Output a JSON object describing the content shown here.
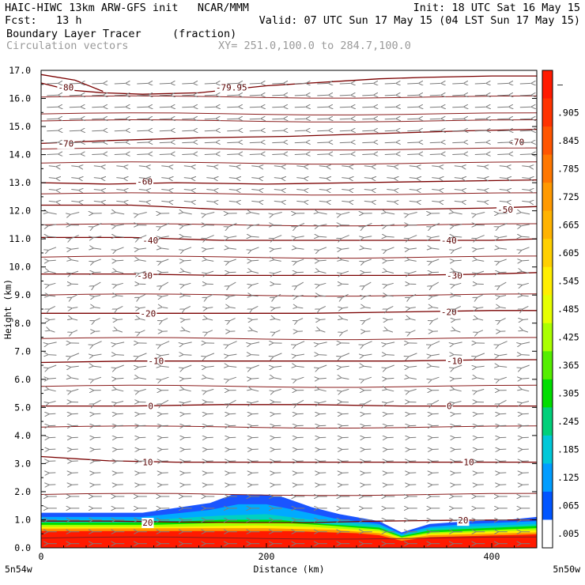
{
  "header": {
    "line1_left": "HAIC-HIWC 13km ARW-GFS init   NCAR/MMM",
    "line1_right": "Init: 18 UTC Sat 16 May 15",
    "line2_left": "Fcst:   13 h",
    "line2_right": "Valid: 07 UTC Sun 17 May 15 (04 LST Sun 17 May 15)",
    "field_name": "Boundary Layer Tracer",
    "field_unit": "(fraction)",
    "vector_label": "Circulation vectors",
    "section_label": "XY= 251.0,100.0 to 284.7,100.0"
  },
  "chart_data": {
    "type": "heatmap",
    "title": "Boundary Layer Tracer",
    "xlabel": "Distance (km)",
    "ylabel": "Height (km)",
    "xlim": [
      0,
      440
    ],
    "ylim": [
      0,
      17
    ],
    "x_ticks": [
      0,
      200,
      400
    ],
    "x_tick_labels": [
      "0",
      "200",
      "400"
    ],
    "y_ticks": [
      0,
      1,
      2,
      3,
      4,
      5,
      6,
      7,
      8,
      9,
      10,
      11,
      12,
      13,
      14,
      15,
      16,
      17
    ],
    "y_tick_labels": [
      "0.0",
      "1.0",
      "2.0",
      "3.0",
      "4.0",
      "5.0",
      "6.0",
      "7.0",
      "8.0",
      "9.0",
      "10.0",
      "11.0",
      "12.0",
      "13.0",
      "14.0",
      "15.0",
      "16.0",
      "17.0"
    ],
    "x_end_labels": [
      "5n54w",
      "5n50w"
    ],
    "colorbar": {
      "labels": [
        "–",
        ".905",
        ".845",
        ".785",
        ".725",
        ".665",
        ".605",
        ".545",
        ".485",
        ".425",
        ".365",
        ".305",
        ".245",
        ".185",
        ".125",
        ".065",
        ".005"
      ],
      "colors": [
        "#ff1a00",
        "#ff3300",
        "#ff5500",
        "#ff7700",
        "#ff9900",
        "#ffb300",
        "#ffd000",
        "#ffee00",
        "#e6ff00",
        "#aaff00",
        "#55ee00",
        "#00dd00",
        "#00d07a",
        "#00c8d8",
        "#009dff",
        "#0055ff",
        "#ffffff"
      ]
    },
    "tracer_layers": [
      {
        "color": "#1a55ff",
        "top": [
          [
            0,
            1.25
          ],
          [
            90,
            1.25
          ],
          [
            150,
            1.6
          ],
          [
            170,
            1.9
          ],
          [
            195,
            1.9
          ],
          [
            215,
            1.8
          ],
          [
            240,
            1.45
          ],
          [
            265,
            1.2
          ],
          [
            300,
            0.95
          ],
          [
            320,
            0.55
          ],
          [
            345,
            0.85
          ],
          [
            380,
            0.95
          ],
          [
            415,
            1.0
          ],
          [
            440,
            1.1
          ]
        ]
      },
      {
        "color": "#00aaff",
        "top": [
          [
            0,
            1.1
          ],
          [
            90,
            1.1
          ],
          [
            150,
            1.35
          ],
          [
            175,
            1.55
          ],
          [
            200,
            1.55
          ],
          [
            225,
            1.35
          ],
          [
            260,
            1.05
          ],
          [
            300,
            0.85
          ],
          [
            320,
            0.5
          ],
          [
            345,
            0.75
          ],
          [
            380,
            0.85
          ],
          [
            440,
            0.95
          ]
        ]
      },
      {
        "color": "#00d0c0",
        "top": [
          [
            0,
            1.0
          ],
          [
            100,
            1.0
          ],
          [
            160,
            1.15
          ],
          [
            200,
            1.2
          ],
          [
            240,
            1.0
          ],
          [
            300,
            0.8
          ],
          [
            320,
            0.45
          ],
          [
            345,
            0.7
          ],
          [
            440,
            0.85
          ]
        ]
      },
      {
        "color": "#00dd00",
        "top": [
          [
            0,
            0.9
          ],
          [
            100,
            0.9
          ],
          [
            160,
            1.0
          ],
          [
            210,
            1.0
          ],
          [
            250,
            0.85
          ],
          [
            300,
            0.72
          ],
          [
            320,
            0.42
          ],
          [
            345,
            0.62
          ],
          [
            440,
            0.78
          ]
        ]
      },
      {
        "color": "#aaff00",
        "top": [
          [
            0,
            0.82
          ],
          [
            100,
            0.82
          ],
          [
            170,
            0.9
          ],
          [
            220,
            0.88
          ],
          [
            260,
            0.78
          ],
          [
            300,
            0.66
          ],
          [
            320,
            0.38
          ],
          [
            345,
            0.55
          ],
          [
            440,
            0.7
          ]
        ]
      },
      {
        "color": "#ffee00",
        "top": [
          [
            0,
            0.75
          ],
          [
            120,
            0.75
          ],
          [
            190,
            0.8
          ],
          [
            240,
            0.75
          ],
          [
            300,
            0.6
          ],
          [
            320,
            0.35
          ],
          [
            345,
            0.5
          ],
          [
            440,
            0.63
          ]
        ]
      },
      {
        "color": "#ff9900",
        "top": [
          [
            0,
            0.68
          ],
          [
            140,
            0.7
          ],
          [
            200,
            0.7
          ],
          [
            260,
            0.64
          ],
          [
            300,
            0.52
          ],
          [
            320,
            0.3
          ],
          [
            345,
            0.45
          ],
          [
            440,
            0.55
          ]
        ]
      },
      {
        "color": "#ff1a00",
        "top": [
          [
            0,
            0.6
          ],
          [
            150,
            0.6
          ],
          [
            220,
            0.6
          ],
          [
            280,
            0.52
          ],
          [
            300,
            0.45
          ],
          [
            320,
            0.25
          ],
          [
            345,
            0.38
          ],
          [
            440,
            0.48
          ]
        ]
      }
    ],
    "contours": [
      {
        "label": "-80",
        "points": [
          [
            0,
            16.55
          ],
          [
            25,
            16.3
          ],
          [
            55,
            16.2
          ],
          [
            90,
            16.15
          ],
          [
            140,
            16.2
          ],
          [
            200,
            16.45
          ],
          [
            260,
            16.6
          ],
          [
            300,
            16.7
          ],
          [
            340,
            16.75
          ],
          [
            400,
            16.8
          ],
          [
            440,
            16.8
          ]
        ],
        "label_pos": [
          [
            15,
            16.4
          ]
        ]
      },
      {
        "label": "-79.95",
        "points": [
          [
            0,
            16.85
          ],
          [
            30,
            16.65
          ],
          [
            55,
            16.25
          ]
        ],
        "label_pos": [
          [
            155,
            16.4
          ]
        ]
      },
      {
        "label": "-70",
        "points": [
          [
            0,
            14.4
          ],
          [
            60,
            14.5
          ],
          [
            140,
            14.6
          ],
          [
            220,
            14.65
          ],
          [
            300,
            14.75
          ],
          [
            380,
            14.85
          ],
          [
            440,
            14.9
          ]
        ],
        "label_pos": [
          [
            15,
            14.4
          ],
          [
            415,
            14.45
          ]
        ]
      },
      {
        "label": "-60",
        "points": [
          [
            0,
            13.0
          ],
          [
            60,
            12.95
          ],
          [
            120,
            13.0
          ],
          [
            200,
            12.95
          ],
          [
            280,
            13.0
          ],
          [
            360,
            13.05
          ],
          [
            440,
            13.1
          ]
        ],
        "label_pos": [
          [
            85,
            13.05
          ]
        ]
      },
      {
        "label": "-50",
        "points": [
          [
            0,
            12.2
          ],
          [
            80,
            12.2
          ],
          [
            160,
            12.05
          ],
          [
            240,
            12.05
          ],
          [
            320,
            12.05
          ],
          [
            400,
            12.1
          ],
          [
            440,
            12.15
          ]
        ],
        "label_pos": [
          [
            405,
            12.05
          ]
        ]
      },
      {
        "label": "-40",
        "points": [
          [
            0,
            11.05
          ],
          [
            80,
            11.05
          ],
          [
            160,
            10.95
          ],
          [
            240,
            10.95
          ],
          [
            320,
            10.95
          ],
          [
            400,
            10.95
          ],
          [
            440,
            11.0
          ]
        ],
        "label_pos": [
          [
            90,
            10.95
          ],
          [
            355,
            10.95
          ]
        ]
      },
      {
        "label": "-30",
        "points": [
          [
            0,
            9.75
          ],
          [
            80,
            9.75
          ],
          [
            160,
            9.7
          ],
          [
            240,
            9.7
          ],
          [
            320,
            9.7
          ],
          [
            400,
            9.75
          ],
          [
            440,
            9.8
          ]
        ],
        "label_pos": [
          [
            85,
            9.7
          ],
          [
            360,
            9.7
          ]
        ]
      },
      {
        "label": "-20",
        "points": [
          [
            0,
            8.35
          ],
          [
            80,
            8.35
          ],
          [
            160,
            8.35
          ],
          [
            240,
            8.35
          ],
          [
            320,
            8.4
          ],
          [
            400,
            8.45
          ],
          [
            440,
            8.45
          ]
        ],
        "label_pos": [
          [
            88,
            8.35
          ],
          [
            355,
            8.4
          ]
        ]
      },
      {
        "label": "-10",
        "points": [
          [
            0,
            6.6
          ],
          [
            80,
            6.65
          ],
          [
            160,
            6.65
          ],
          [
            240,
            6.65
          ],
          [
            320,
            6.65
          ],
          [
            400,
            6.7
          ],
          [
            440,
            6.7
          ]
        ],
        "label_pos": [
          [
            95,
            6.65
          ],
          [
            360,
            6.65
          ]
        ]
      },
      {
        "label": "0",
        "points": [
          [
            0,
            5.05
          ],
          [
            80,
            5.05
          ],
          [
            160,
            5.1
          ],
          [
            240,
            5.1
          ],
          [
            320,
            5.05
          ],
          [
            400,
            5.05
          ],
          [
            440,
            5.05
          ]
        ],
        "label_pos": [
          [
            95,
            5.05
          ],
          [
            360,
            5.05
          ]
        ]
      },
      {
        "label": "10",
        "points": [
          [
            0,
            3.25
          ],
          [
            60,
            3.1
          ],
          [
            120,
            3.05
          ],
          [
            200,
            3.05
          ],
          [
            280,
            3.05
          ],
          [
            360,
            3.05
          ],
          [
            440,
            3.05
          ]
        ],
        "label_pos": [
          [
            90,
            3.05
          ],
          [
            375,
            3.05
          ]
        ]
      },
      {
        "label": "20",
        "points": [
          [
            0,
            0.95
          ],
          [
            60,
            0.95
          ],
          [
            120,
            0.92
          ],
          [
            180,
            0.9
          ],
          [
            240,
            0.9
          ],
          [
            300,
            0.95
          ],
          [
            360,
            0.98
          ],
          [
            440,
            1.0
          ]
        ],
        "label_pos": [
          [
            90,
            0.9
          ],
          [
            370,
            0.98
          ]
        ]
      }
    ],
    "background_lines_y": [
      0.35,
      1.9,
      4.3,
      5.75,
      7.45,
      9.0,
      10.35,
      11.5,
      12.6,
      13.7,
      14.2,
      15.2,
      15.45,
      16.05
    ],
    "vectors": {
      "x_step_km": 20,
      "y_step_km": 0.42,
      "color": "#7c7c7c"
    }
  }
}
